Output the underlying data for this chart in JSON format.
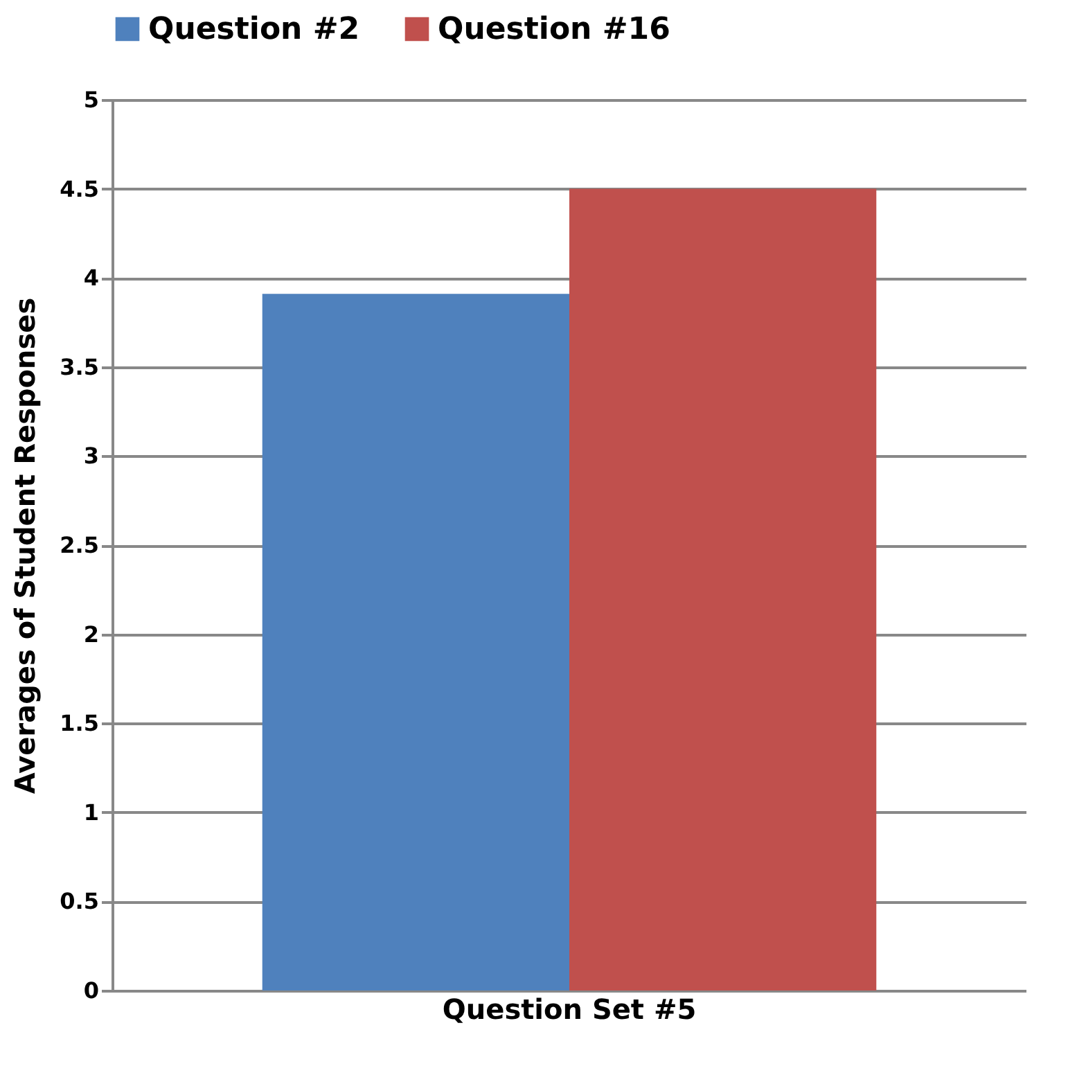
{
  "chart_data": {
    "type": "bar",
    "ylabel": "Averages of Student Responses",
    "categories": [
      "Question Set #5"
    ],
    "series": [
      {
        "name": "Question #2",
        "color": "#4f81bd",
        "values": [
          3.91
        ]
      },
      {
        "name": "Question #16",
        "color": "#c0504d",
        "values": [
          4.5
        ]
      }
    ],
    "ylim": [
      0,
      5
    ],
    "yticks": [
      0,
      0.5,
      1,
      1.5,
      2,
      2.5,
      3,
      3.5,
      4,
      4.5,
      5
    ],
    "grid": "y",
    "legend": "top"
  }
}
